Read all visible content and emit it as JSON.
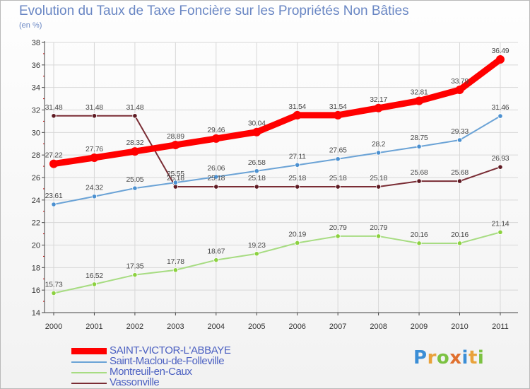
{
  "chart_data": {
    "type": "line",
    "title": "Evolution du Taux de Taxe Foncière sur les Propriétés Non Bâties",
    "unit_label": "(en %)",
    "xlabel": "",
    "ylabel": "(en %)",
    "categories": [
      "2000",
      "2001",
      "2002",
      "2003",
      "2004",
      "2005",
      "2006",
      "2007",
      "2008",
      "2009",
      "2010",
      "2011"
    ],
    "ylim": [
      14,
      38
    ],
    "yticks": [
      "14",
      "16",
      "18",
      "20",
      "22",
      "24",
      "26",
      "28",
      "30",
      "32",
      "34",
      "36",
      "38"
    ],
    "grid": true,
    "series": [
      {
        "name": "SAINT-VICTOR-L'ABBAYE",
        "color": "#ff0000",
        "values": [
          27.22,
          27.76,
          28.32,
          28.89,
          29.46,
          30.04,
          31.54,
          31.54,
          32.17,
          32.81,
          33.79,
          36.49
        ],
        "labels": [
          "27.22",
          "27.76",
          "28.32",
          "28.89",
          "29.46",
          "30.04",
          "31.54",
          "31.54",
          "32.17",
          "32.81",
          "33.79",
          "36.49"
        ]
      },
      {
        "name": "Saint-Maclou-de-Folleville",
        "color": "#6ba3d6",
        "marker": "#4b90d0",
        "values": [
          23.61,
          24.32,
          25.05,
          25.55,
          26.06,
          26.58,
          27.11,
          27.65,
          28.2,
          28.75,
          29.33,
          31.46
        ],
        "labels": [
          "23.61",
          "24.32",
          "25.05",
          "25.55",
          "26.06",
          "26.58",
          "27.11",
          "27.65",
          "28.2",
          "28.75",
          "29.33",
          "31.46"
        ]
      },
      {
        "name": "Montreuil-en-Caux",
        "color": "#a7dc82",
        "marker": "#8cd13f",
        "values": [
          15.73,
          16.52,
          17.35,
          17.78,
          18.67,
          19.23,
          20.19,
          20.79,
          20.79,
          20.16,
          20.16,
          21.14
        ],
        "labels": [
          "15.73",
          "16.52",
          "17.35",
          "17.78",
          "18.67",
          "19.23",
          "20.19",
          "20.79",
          "20.79",
          "20.16",
          "20.16",
          "21.14"
        ]
      },
      {
        "name": "Vassonville",
        "color": "#7a2d35",
        "marker": "#5e1a22",
        "values": [
          31.48,
          31.48,
          31.48,
          25.18,
          25.18,
          25.18,
          25.18,
          25.18,
          25.18,
          25.68,
          25.68,
          26.93
        ],
        "labels": [
          "31.48",
          "31.48",
          "31.48",
          "25.18",
          "25.18",
          "25.18",
          "25.18",
          "25.18",
          "25.18",
          "25.68",
          "25.68",
          "26.93"
        ]
      }
    ],
    "legend": [
      "SAINT-VICTOR-L'ABBAYE",
      "Saint-Maclou-de-Folleville",
      "Montreuil-en-Caux",
      "Vassonville"
    ],
    "legend_position": "bottom-left"
  },
  "branding": {
    "logo_text": "Proxiti",
    "letter_colors": [
      "#3b8ed6",
      "#e9a23b",
      "#7cc242",
      "#e0702f",
      "#3b8ed6",
      "#e9a23b",
      "#7cc242"
    ]
  }
}
